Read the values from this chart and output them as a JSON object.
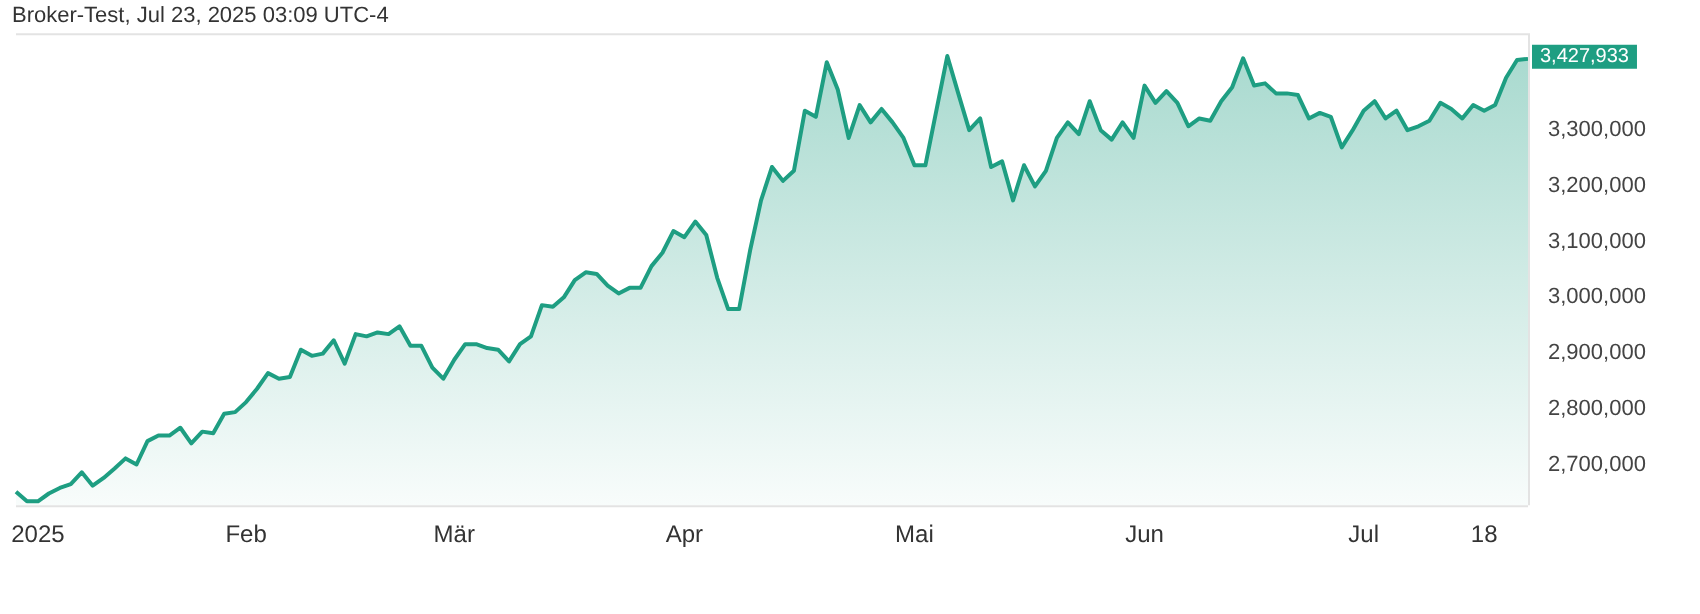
{
  "chart_data": {
    "type": "area",
    "title": "Broker-Test, Jul 23, 2025 03:09 UTC-4",
    "categories": [
      null,
      null,
      "2025",
      null,
      null,
      null,
      null,
      null,
      null,
      null,
      null,
      null,
      null,
      null,
      null,
      null,
      null,
      null,
      null,
      null,
      null,
      "Feb",
      null,
      null,
      null,
      null,
      null,
      null,
      null,
      null,
      null,
      null,
      null,
      null,
      null,
      null,
      null,
      null,
      null,
      null,
      "Mär",
      null,
      null,
      null,
      null,
      null,
      null,
      null,
      null,
      null,
      null,
      null,
      null,
      null,
      null,
      null,
      null,
      null,
      null,
      null,
      null,
      "Apr",
      null,
      null,
      null,
      null,
      null,
      null,
      null,
      null,
      null,
      null,
      null,
      null,
      null,
      null,
      null,
      null,
      null,
      null,
      null,
      null,
      "Mai",
      null,
      null,
      null,
      null,
      null,
      null,
      null,
      null,
      null,
      null,
      null,
      null,
      null,
      null,
      null,
      null,
      null,
      null,
      null,
      null,
      "Jun",
      null,
      null,
      null,
      null,
      null,
      null,
      null,
      null,
      null,
      null,
      null,
      null,
      null,
      null,
      null,
      null,
      null,
      null,
      null,
      "Jul",
      null,
      null,
      null,
      null,
      null,
      null,
      null,
      null,
      null,
      null,
      "18",
      null,
      null,
      null,
      null
    ],
    "series": [
      {
        "color": "#1e9e82",
        "values": [
          2651000,
          2634000,
          2634000,
          2648000,
          2658000,
          2665000,
          2686000,
          2662000,
          2676000,
          2693000,
          2711000,
          2700000,
          2742000,
          2752000,
          2752000,
          2766000,
          2738000,
          2759000,
          2756000,
          2791000,
          2794000,
          2812000,
          2836000,
          2864000,
          2854000,
          2857000,
          2906000,
          2895000,
          2899000,
          2923000,
          2881000,
          2934000,
          2930000,
          2937000,
          2934000,
          2948000,
          2913000,
          2913000,
          2874000,
          2854000,
          2888000,
          2916000,
          2916000,
          2909000,
          2906000,
          2885000,
          2916000,
          2930000,
          2986000,
          2983000,
          3000000,
          3031000,
          3045000,
          3042000,
          3021000,
          3007000,
          3017000,
          3017000,
          3056000,
          3080000,
          3119000,
          3108000,
          3136000,
          3112000,
          3035000,
          2979000,
          2979000,
          3084000,
          3174000,
          3234000,
          3209000,
          3227000,
          3335000,
          3324000,
          3422000,
          3373000,
          3286000,
          3345000,
          3314000,
          3338000,
          3314000,
          3286000,
          3237000,
          3237000,
          3335000,
          3433000,
          3366000,
          3300000,
          3321000,
          3234000,
          3244000,
          3174000,
          3237000,
          3199000,
          3227000,
          3286000,
          3314000,
          3293000,
          3352000,
          3300000,
          3283000,
          3314000,
          3286000,
          3380000,
          3349000,
          3370000,
          3349000,
          3307000,
          3321000,
          3317000,
          3352000,
          3377000,
          3429000,
          3380000,
          3384000,
          3366000,
          3366000,
          3363000,
          3321000,
          3331000,
          3324000,
          3269000,
          3300000,
          3335000,
          3352000,
          3321000,
          3335000,
          3300000,
          3307000,
          3317000,
          3349000,
          3338000,
          3321000,
          3345000,
          3335000,
          3345000,
          3394000,
          3426000,
          3427933
        ]
      }
    ],
    "ylim": [
      2627000,
      3474000
    ],
    "yticks": [
      {
        "value": 2700000,
        "label": "2,700,000"
      },
      {
        "value": 2800000,
        "label": "2,800,000"
      },
      {
        "value": 2900000,
        "label": "2,900,000"
      },
      {
        "value": 3000000,
        "label": "3,000,000"
      },
      {
        "value": 3100000,
        "label": "3,100,000"
      },
      {
        "value": 3200000,
        "label": "3,200,000"
      },
      {
        "value": 3300000,
        "label": "3,300,000"
      }
    ],
    "annotations": [
      "3,427,933"
    ],
    "grid": false,
    "legend": false,
    "marker": "none",
    "line_style": "solid"
  }
}
